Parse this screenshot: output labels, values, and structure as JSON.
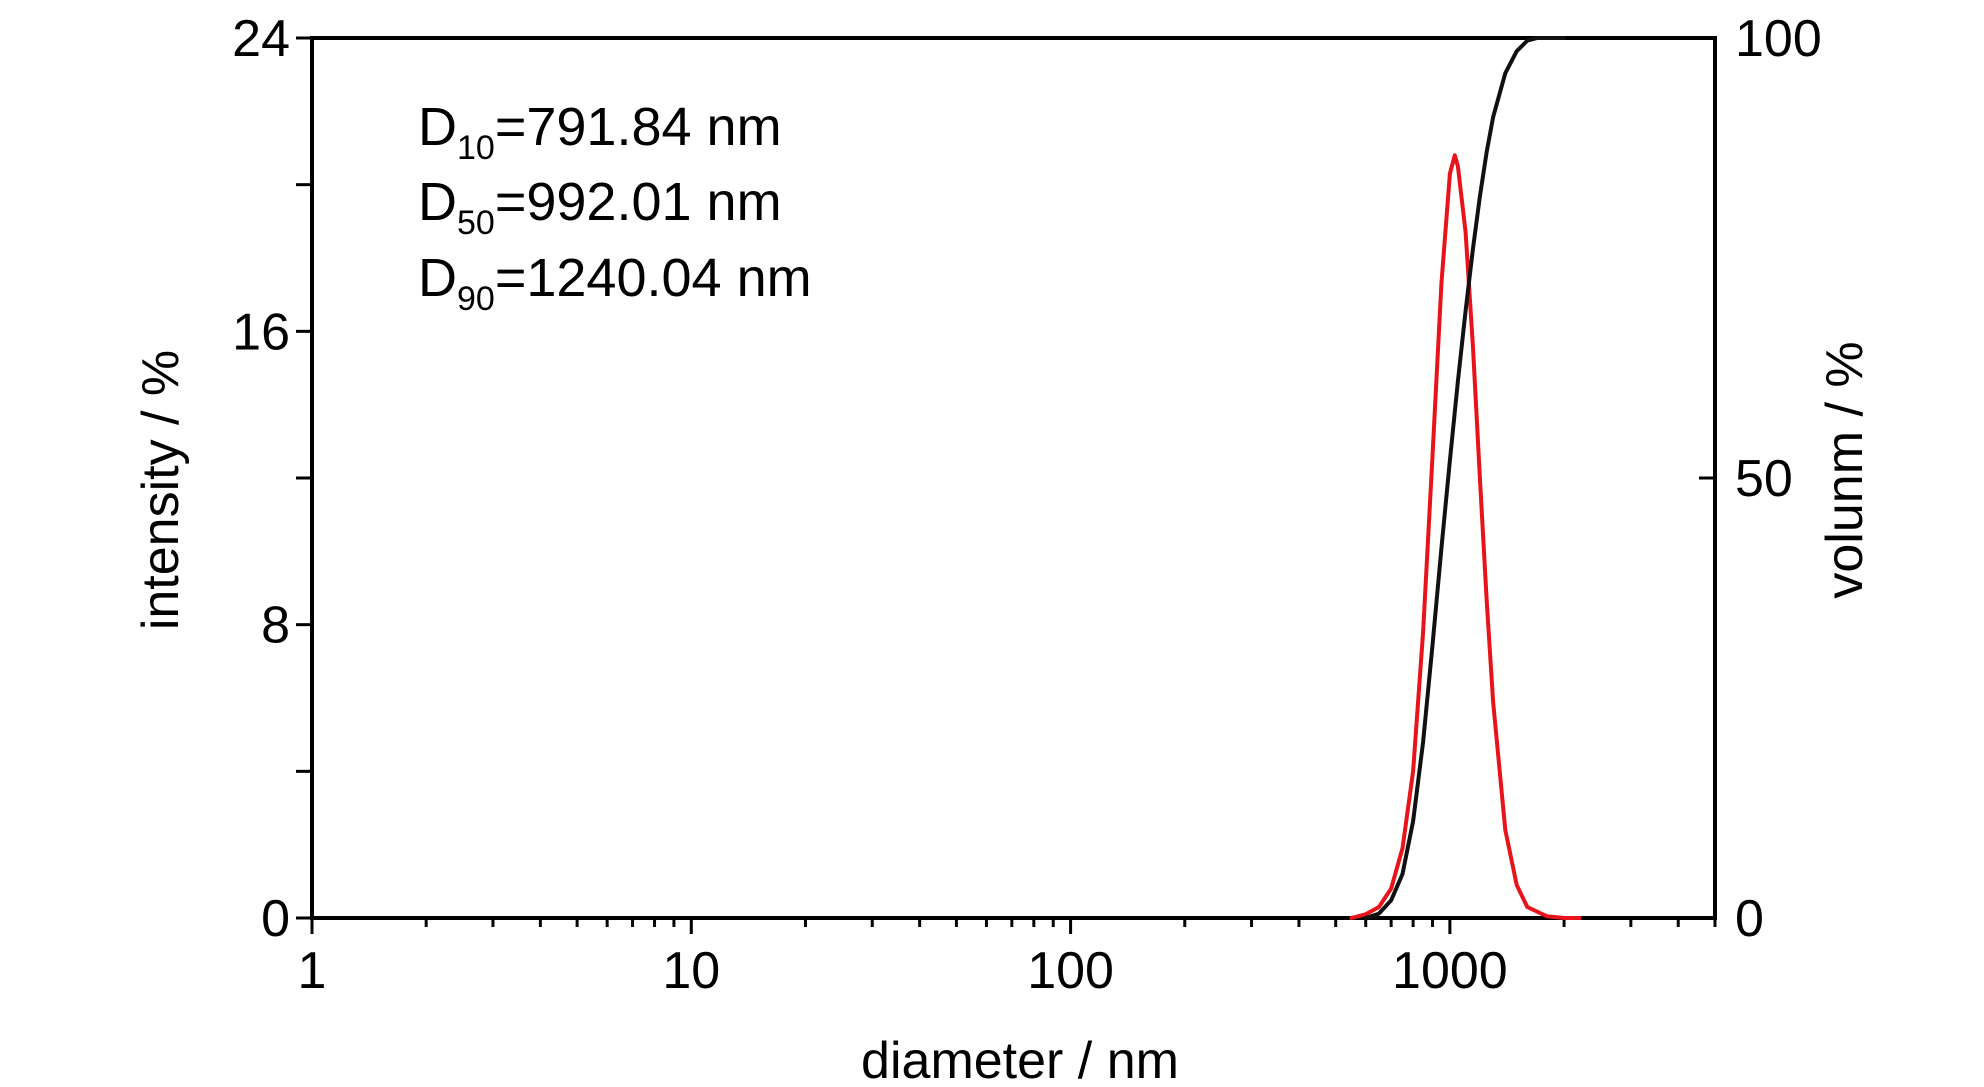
{
  "chart_data": {
    "type": "line",
    "x_scale": "log",
    "xlim": [
      1,
      5000
    ],
    "ylim_left": [
      0,
      24
    ],
    "ylim_right": [
      0,
      100
    ],
    "xlabel": "diameter / nm",
    "ylabel_left": "intensity / %",
    "ylabel_right": "volunm / %",
    "x_ticks": [
      {
        "value": 1,
        "label": "1"
      },
      {
        "value": 10,
        "label": "10"
      },
      {
        "value": 100,
        "label": "100"
      },
      {
        "value": 1000,
        "label": "1000"
      }
    ],
    "y_left_ticks": [
      {
        "value": 0,
        "label": "0"
      },
      {
        "value": 8,
        "label": "8"
      },
      {
        "value": 16,
        "label": "16"
      },
      {
        "value": 24,
        "label": "24"
      }
    ],
    "y_right_ticks": [
      {
        "value": 0,
        "label": "0"
      },
      {
        "value": 50,
        "label": "50"
      },
      {
        "value": 100,
        "label": "100"
      }
    ],
    "annotations": [
      {
        "main": "D",
        "sub": "10",
        "text": "=791.84 nm"
      },
      {
        "main": "D",
        "sub": "50",
        "text": "=992.01 nm"
      },
      {
        "main": "D",
        "sub": "90",
        "text": "=1240.04 nm"
      }
    ],
    "series": [
      {
        "axis": "left",
        "color": "#e8131b",
        "x": [
          550,
          600,
          650,
          700,
          750,
          800,
          850,
          900,
          950,
          1000,
          1030,
          1050,
          1100,
          1150,
          1200,
          1250,
          1300,
          1400,
          1500,
          1600,
          1800,
          2000,
          2200
        ],
        "y": [
          0.0,
          0.1,
          0.3,
          0.8,
          1.9,
          4.0,
          7.8,
          12.6,
          17.3,
          20.3,
          20.8,
          20.5,
          18.7,
          15.6,
          12.0,
          8.7,
          5.9,
          2.4,
          0.9,
          0.3,
          0.05,
          0.0,
          0.0
        ]
      },
      {
        "axis": "right",
        "color": "#111111",
        "x": [
          600,
          650,
          700,
          750,
          800,
          850,
          900,
          950,
          1000,
          1050,
          1100,
          1150,
          1200,
          1250,
          1300,
          1400,
          1500,
          1600,
          1700,
          2000
        ],
        "y": [
          0.0,
          0.5,
          2.0,
          5.0,
          11.0,
          20.0,
          31.0,
          42.0,
          52.0,
          61.0,
          69.0,
          76.0,
          82.0,
          87.0,
          91.0,
          96.0,
          98.5,
          99.7,
          100.0,
          100.0
        ]
      }
    ]
  }
}
